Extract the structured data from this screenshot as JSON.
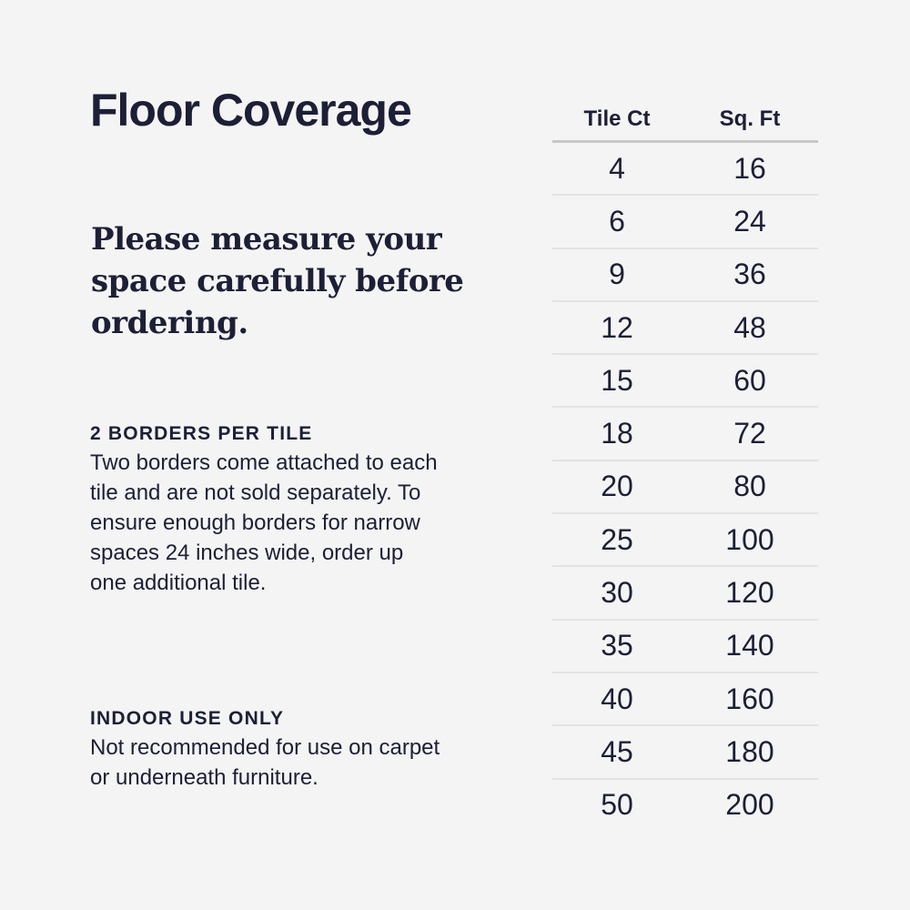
{
  "title": "Floor Coverage",
  "subtitle": "Please measure your space carefully before ordering.",
  "sections": [
    {
      "heading": "2 BORDERS PER TILE",
      "body": "Two borders come attached to each tile and are not sold separately. To ensure enough borders for narrow spaces 24 inches wide, order up one additional tile."
    },
    {
      "heading": "INDOOR USE ONLY",
      "body": "Not recommended for use on carpet or underneath furniture."
    }
  ],
  "table": {
    "headers": [
      "Tile Ct",
      "Sq. Ft"
    ],
    "rows": [
      [
        "4",
        "16"
      ],
      [
        "6",
        "24"
      ],
      [
        "9",
        "36"
      ],
      [
        "12",
        "48"
      ],
      [
        "15",
        "60"
      ],
      [
        "18",
        "72"
      ],
      [
        "20",
        "80"
      ],
      [
        "25",
        "100"
      ],
      [
        "30",
        "120"
      ],
      [
        "35",
        "140"
      ],
      [
        "40",
        "160"
      ],
      [
        "45",
        "180"
      ],
      [
        "50",
        "200"
      ]
    ]
  },
  "colors": {
    "text": "#1c1f36",
    "background": "#f4f4f4",
    "rule": "#c8c8c8"
  }
}
